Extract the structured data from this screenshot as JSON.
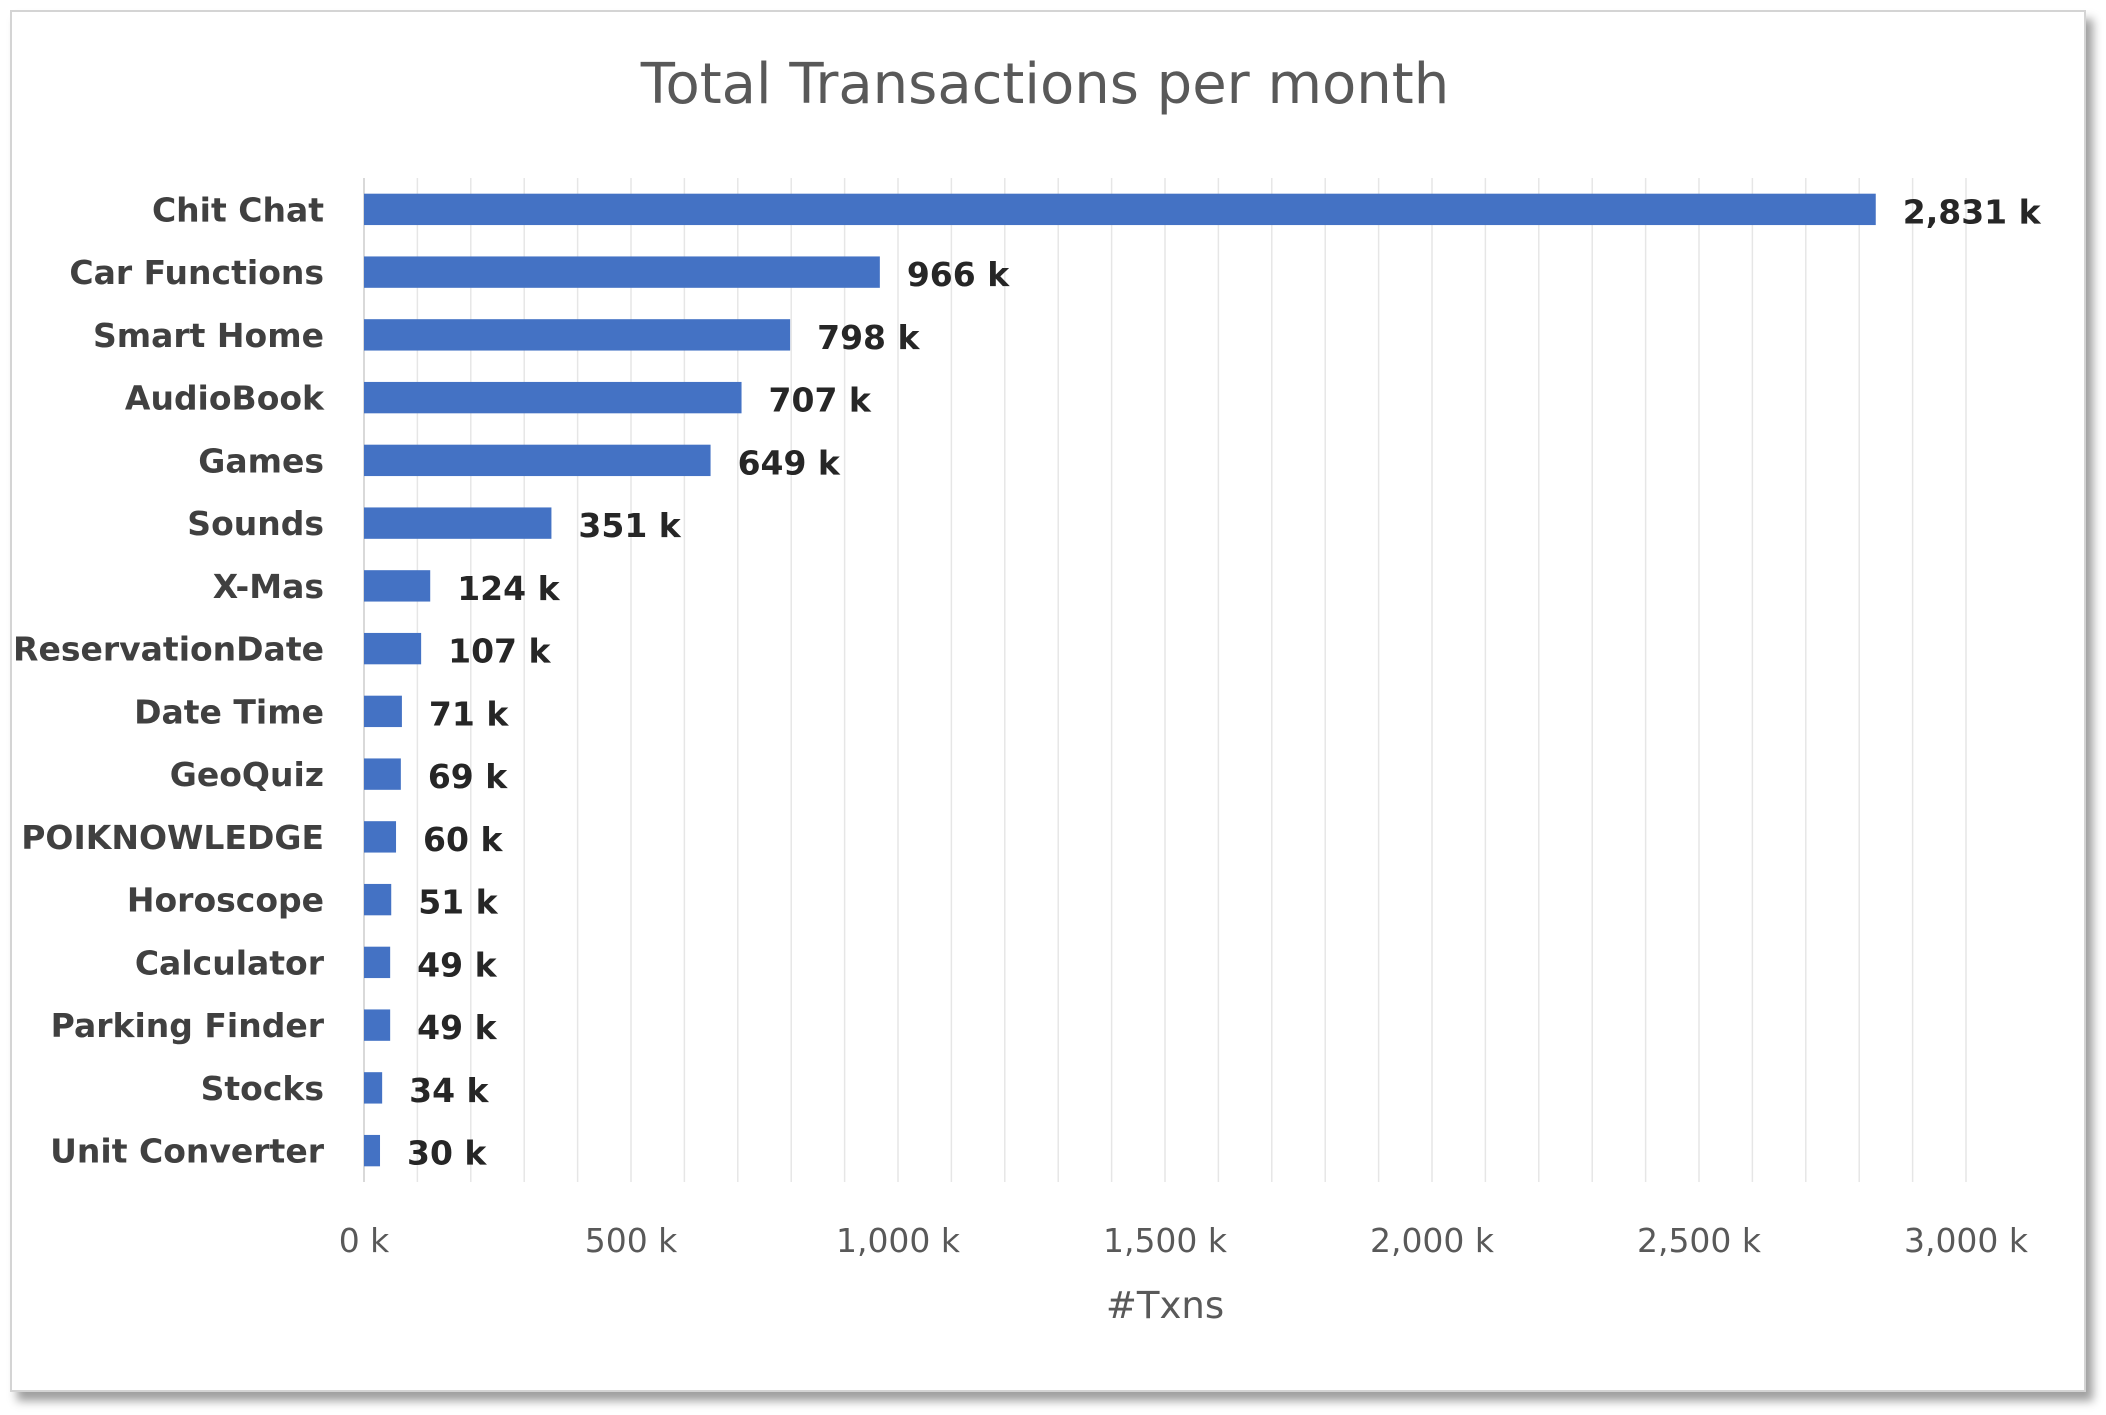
{
  "chart_data": {
    "type": "bar",
    "orientation": "horizontal",
    "title": "Total Transactions per month",
    "xlabel": "#Txns",
    "ylabel": "",
    "categories": [
      "Chit Chat",
      "Car Functions",
      "Smart Home",
      "AudioBook",
      "Games",
      "Sounds",
      "X-Mas",
      "ReservationDate",
      "Date Time",
      "GeoQuiz",
      "POIKNOWLEDGE",
      "Horoscope",
      "Calculator",
      "Parking Finder",
      "Stocks",
      "Unit Converter"
    ],
    "values": [
      2831,
      966,
      798,
      707,
      649,
      351,
      124,
      107,
      71,
      69,
      60,
      51,
      49,
      49,
      34,
      30
    ],
    "value_labels": [
      "2,831 k",
      "966 k",
      "798 k",
      "707 k",
      "649 k",
      "351 k",
      "124 k",
      "107 k",
      "71 k",
      "69 k",
      "60 k",
      "51 k",
      "49 k",
      "49 k",
      "34 k",
      "30 k"
    ],
    "xlim": [
      0,
      3000
    ],
    "x_ticks": [
      0,
      500,
      1000,
      1500,
      2000,
      2500,
      3000
    ],
    "x_tick_labels": [
      "0 k",
      "500 k",
      "1,000 k",
      "1,500 k",
      "2,000 k",
      "2,500 k",
      "3,000 k"
    ],
    "minor_gridline_step": 100,
    "grid": true,
    "legend": "none",
    "bar_color": "#4472c4",
    "gridline_color": "#e6e6e6",
    "axis_color": "#d9d9d9"
  }
}
